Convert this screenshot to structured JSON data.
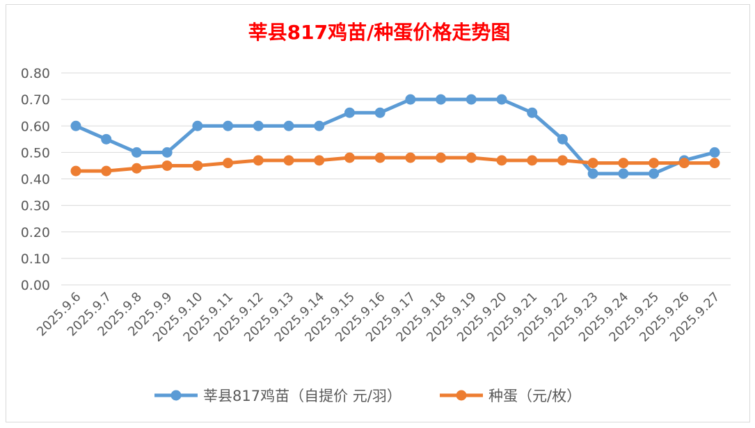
{
  "chart_data": {
    "type": "line",
    "title": "莘县817鸡苗/种蛋价格走势图",
    "title_color": "#ff0000",
    "xlabel": "",
    "ylabel": "",
    "ylim": [
      0,
      0.8
    ],
    "yticks": [
      "0.00",
      "0.10",
      "0.20",
      "0.30",
      "0.40",
      "0.50",
      "0.60",
      "0.70",
      "0.80"
    ],
    "grid": true,
    "legend_position": "bottom",
    "categories": [
      "2025.9.6",
      "2025.9.7",
      "2025.9.8",
      "2025.9.9",
      "2025.9.10",
      "2025.9.11",
      "2025.9.12",
      "2025.9.13",
      "2025.9.14",
      "2025.9.15",
      "2025.9.16",
      "2025.9.17",
      "2025.9.18",
      "2025.9.19",
      "2025.9.20",
      "2025.9.21",
      "2025.9.22",
      "2025.9.23",
      "2025.9.24",
      "2025.9.25",
      "2025.9.26",
      "2025.9.27"
    ],
    "series": [
      {
        "name": "莘县817鸡苗（自提价 元/羽）",
        "color": "#5b9bd5",
        "values": [
          0.6,
          0.55,
          0.5,
          0.5,
          0.6,
          0.6,
          0.6,
          0.6,
          0.6,
          0.65,
          0.65,
          0.7,
          0.7,
          0.7,
          0.7,
          0.65,
          0.55,
          0.42,
          0.42,
          0.42,
          0.47,
          0.5
        ]
      },
      {
        "name": "种蛋（元/枚）",
        "color": "#ed7d31",
        "values": [
          0.43,
          0.43,
          0.44,
          0.45,
          0.45,
          0.46,
          0.47,
          0.47,
          0.47,
          0.48,
          0.48,
          0.48,
          0.48,
          0.48,
          0.47,
          0.47,
          0.47,
          0.46,
          0.46,
          0.46,
          0.46,
          0.46
        ]
      }
    ]
  }
}
